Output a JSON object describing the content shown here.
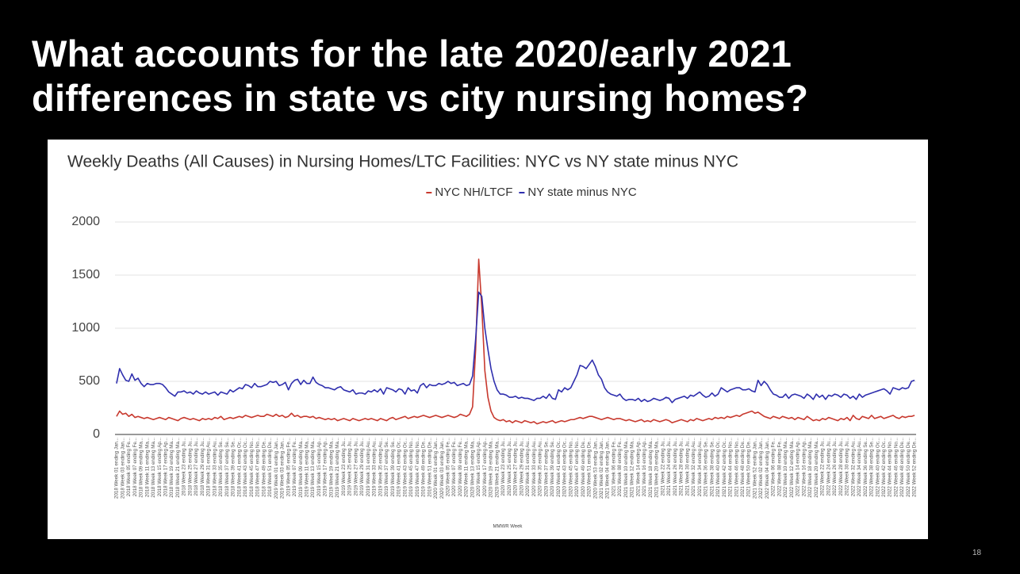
{
  "slide": {
    "title": [
      "What accounts for the late 2020/early 2021",
      "differences in state vs city nursing homes?"
    ],
    "page_number": "18"
  },
  "chart_data": {
    "type": "line",
    "title": "Weekly Deaths (All Causes) in Nursing Homes/LTC Facilities: NYC vs NY state minus NYC",
    "x_label": "MMWR Week",
    "ylim": [
      0,
      2000
    ],
    "yticks": [
      0,
      500,
      1000,
      1500,
      2000
    ],
    "grid": true,
    "legend": "top",
    "categories": [
      "2018 Week 01 ending Jan...",
      null,
      "2018 Week 03 ending Jan...",
      null,
      "2018 Week 05 ending Fe...",
      null,
      "2018 Week 07 ending Fe...",
      null,
      "2018 Week 09 ending Ma...",
      null,
      "2018 Week 11 ending Ma...",
      null,
      "2018 Week 13 ending Ma...",
      null,
      "2018 Week 15 ending Ap...",
      null,
      "2018 Week 17 ending Ap...",
      null,
      "2018 Week 19 ending Ma...",
      null,
      "2018 Week 21 ending Ma...",
      null,
      "2018 Week 23 ending Ju...",
      null,
      "2018 Week 25 ending Ju...",
      null,
      "2018 Week 27 ending Ju...",
      null,
      "2018 Week 29 ending Ju...",
      null,
      "2018 Week 31 ending Au...",
      null,
      "2018 Week 33 ending Au...",
      null,
      "2018 Week 35 ending Se...",
      null,
      "2018 Week 37 ending Se...",
      null,
      "2018 Week 39 ending Se...",
      null,
      "2018 Week 41 ending Oc...",
      null,
      "2018 Week 43 ending Oc...",
      null,
      "2018 Week 45 ending No...",
      null,
      "2018 Week 47 ending No...",
      null,
      "2018 Week 49 ending De...",
      null,
      "2018 Week 51 ending De...",
      null,
      "2019 Week 01 ending Jan...",
      null,
      "2019 Week 03 ending Jan...",
      null,
      "2019 Week 05 ending Fe...",
      null,
      "2019 Week 07 ending Fe...",
      null,
      "2019 Week 09 ending Ma...",
      null,
      "2019 Week 11 ending Ma...",
      null,
      "2019 Week 13 ending Ma...",
      null,
      "2019 Week 15 ending Ap...",
      null,
      "2019 Week 17 ending Ap...",
      null,
      "2019 Week 19 ending Ma...",
      null,
      "2019 Week 21 ending Ma...",
      null,
      "2019 Week 23 ending Ju...",
      null,
      "2019 Week 25 ending Ju...",
      null,
      "2019 Week 27 ending Ju...",
      null,
      "2019 Week 29 ending Ju...",
      null,
      "2019 Week 31 ending Au...",
      null,
      "2019 Week 33 ending Au...",
      null,
      "2019 Week 35 ending Au...",
      null,
      "2019 Week 37 ending Se...",
      null,
      "2019 Week 39 ending Se...",
      null,
      "2019 Week 41 ending Oc...",
      null,
      "2019 Week 43 ending Oc...",
      null,
      "2019 Week 45 ending No...",
      null,
      "2019 Week 47 ending No...",
      null,
      "2019 Week 49 ending De...",
      null,
      "2019 Week 51 ending De...",
      null,
      "2020 Week 01 ending Jan...",
      null,
      "2020 Week 03 ending Jan...",
      null,
      "2020 Week 05 ending Fe...",
      null,
      "2020 Week 07 ending Fe...",
      null,
      "2020 Week 09 ending Fe...",
      null,
      "2020 Week 11 ending Ma...",
      null,
      "2020 Week 13 ending Ma...",
      null,
      "2020 Week 15 ending Ap...",
      null,
      "2020 Week 17 ending Ap...",
      null,
      "2020 Week 19 ending Ma...",
      null,
      "2020 Week 21 ending Ma...",
      null,
      "2020 Week 23 ending Ju...",
      null,
      "2020 Week 25 ending Ju...",
      null,
      "2020 Week 27 ending Ju...",
      null,
      "2020 Week 29 ending Ju...",
      null,
      "2020 Week 31 ending Au...",
      null,
      "2020 Week 33 ending Au...",
      null,
      "2020 Week 35 ending Au...",
      null,
      "2020 Week 37 ending Se...",
      null,
      "2020 Week 39 ending Se...",
      null,
      "2020 Week 41 ending Oc...",
      null,
      "2020 Week 43 ending Oc...",
      null,
      "2020 Week 45 ending No...",
      null,
      "2020 Week 47 ending No...",
      null,
      "2020 Week 49 ending De...",
      null,
      "2020 Week 51 ending De...",
      null,
      "2020 Week 53 ending Jan...",
      null,
      "2021 Week 02 ending Jan...",
      null,
      "2021 Week 04 ending Jan...",
      null,
      "2021 Week 06 ending Fe...",
      null,
      "2021 Week 08 ending Fe...",
      null,
      "2021 Week 10 ending Ma...",
      null,
      "2021 Week 12 ending Ma...",
      null,
      "2021 Week 14 ending Ap...",
      null,
      "2021 Week 16 ending Ap...",
      null,
      "2021 Week 18 ending Ma...",
      null,
      "2021 Week 20 ending Ma...",
      null,
      "2021 Week 22 ending Ju...",
      null,
      "2021 Week 24 ending Ju...",
      null,
      "2021 Week 26 ending Ju...",
      null,
      "2021 Week 28 ending Ju...",
      null,
      "2021 Week 30 ending Ju...",
      null,
      "2021 Week 32 ending Au...",
      null,
      "2021 Week 34 ending Au...",
      null,
      "2021 Week 36 ending Se...",
      null,
      "2021 Week 38 ending Se...",
      null,
      "2021 Week 40 ending Oc...",
      null,
      "2021 Week 42 ending Oc...",
      null,
      "2021 Week 44 ending No...",
      null,
      "2021 Week 46 ending No...",
      null,
      "2021 Week 48 ending De...",
      null,
      "2021 Week 50 ending De...",
      null,
      "2021 Week 52 ending Jan...",
      null,
      "2022 Week 02 ending Jan...",
      null,
      "2022 Week 04 ending Jan...",
      null,
      "2022 Week 06 ending Fe...",
      null,
      "2022 Week 08 ending Fe...",
      null,
      "2022 Week 10 ending Ma...",
      null,
      "2022 Week 12 ending Ma...",
      null,
      "2022 Week 14 ending Ap...",
      null,
      "2022 Week 16 ending Ap...",
      null,
      "2022 Week 18 ending Ma...",
      null,
      "2022 Week 20 ending Ma...",
      null,
      "2022 Week 22 ending Ju...",
      null,
      "2022 Week 24 ending Ju...",
      null,
      "2022 Week 26 ending Ju...",
      null,
      "2022 Week 28 ending Ju...",
      null,
      "2022 Week 30 ending Ju...",
      null,
      "2022 Week 32 ending Au...",
      null,
      "2022 Week 34 ending Au...",
      null,
      "2022 Week 36 ending Se...",
      null,
      "2022 Week 38 ending Se...",
      null,
      "2022 Week 40 ending Oc...",
      null,
      "2022 Week 42 ending Oc...",
      null,
      "2022 Week 44 ending No...",
      null,
      "2022 Week 46 ending No...",
      null,
      "2022 Week 48 ending De...",
      null,
      "2022 Week 50 ending De...",
      null,
      "2022 Week 52 ending De..."
    ],
    "series": [
      {
        "name": "NYC NH/LTCF",
        "color": "#c8392e",
        "values": [
          170,
          220,
          190,
          200,
          170,
          190,
          160,
          170,
          160,
          150,
          160,
          150,
          140,
          150,
          160,
          150,
          140,
          160,
          150,
          140,
          130,
          150,
          160,
          150,
          140,
          150,
          140,
          130,
          150,
          140,
          150,
          140,
          160,
          150,
          170,
          140,
          150,
          160,
          150,
          160,
          170,
          160,
          180,
          170,
          160,
          170,
          180,
          170,
          170,
          190,
          180,
          170,
          190,
          170,
          180,
          160,
          170,
          200,
          170,
          180,
          160,
          170,
          170,
          160,
          170,
          150,
          160,
          150,
          140,
          150,
          140,
          150,
          130,
          140,
          150,
          140,
          130,
          150,
          140,
          130,
          140,
          150,
          140,
          150,
          140,
          130,
          150,
          140,
          130,
          150,
          160,
          140,
          150,
          160,
          170,
          150,
          160,
          170,
          160,
          170,
          180,
          170,
          160,
          170,
          180,
          170,
          160,
          170,
          180,
          170,
          160,
          170,
          190,
          180,
          170,
          190,
          260,
          800,
          1650,
          1200,
          600,
          350,
          220,
          160,
          140,
          130,
          140,
          120,
          130,
          110,
          130,
          120,
          110,
          130,
          120,
          110,
          120,
          100,
          110,
          120,
          110,
          120,
          130,
          110,
          120,
          130,
          120,
          130,
          140,
          140,
          150,
          160,
          150,
          160,
          170,
          170,
          160,
          150,
          140,
          150,
          160,
          150,
          140,
          150,
          150,
          140,
          130,
          140,
          130,
          120,
          130,
          140,
          120,
          130,
          120,
          140,
          130,
          120,
          130,
          140,
          130,
          110,
          120,
          130,
          140,
          130,
          120,
          140,
          130,
          150,
          140,
          130,
          140,
          150,
          140,
          160,
          150,
          160,
          150,
          170,
          160,
          170,
          180,
          170,
          190,
          200,
          210,
          220,
          200,
          210,
          190,
          170,
          160,
          150,
          170,
          160,
          150,
          170,
          160,
          150,
          160,
          140,
          160,
          150,
          140,
          170,
          150,
          130,
          140,
          130,
          150,
          140,
          160,
          150,
          140,
          130,
          150,
          140,
          160,
          130,
          180,
          150,
          140,
          170,
          160,
          150,
          180,
          150,
          160,
          170,
          150,
          160,
          170,
          180,
          160,
          150,
          170,
          160,
          170,
          170,
          180
        ]
      },
      {
        "name": "NY state minus NYC",
        "color": "#2f2fae",
        "values": [
          480,
          620,
          560,
          510,
          500,
          570,
          510,
          530,
          480,
          450,
          480,
          470,
          470,
          480,
          480,
          470,
          440,
          400,
          380,
          360,
          400,
          400,
          410,
          390,
          400,
          380,
          410,
          390,
          380,
          400,
          380,
          390,
          400,
          370,
          400,
          390,
          380,
          420,
          400,
          420,
          440,
          430,
          470,
          460,
          440,
          480,
          450,
          450,
          460,
          470,
          500,
          490,
          500,
          460,
          470,
          490,
          420,
          480,
          510,
          520,
          470,
          510,
          480,
          480,
          540,
          490,
          470,
          460,
          440,
          440,
          430,
          420,
          440,
          450,
          420,
          410,
          400,
          420,
          380,
          390,
          390,
          380,
          410,
          400,
          420,
          400,
          430,
          380,
          440,
          430,
          420,
          400,
          430,
          420,
          380,
          440,
          410,
          420,
          390,
          460,
          480,
          440,
          470,
          460,
          460,
          480,
          470,
          480,
          500,
          480,
          490,
          460,
          470,
          480,
          460,
          470,
          550,
          900,
          1340,
          1300,
          1000,
          800,
          620,
          500,
          420,
          380,
          380,
          370,
          350,
          350,
          360,
          340,
          350,
          340,
          340,
          330,
          320,
          340,
          340,
          360,
          340,
          380,
          340,
          330,
          420,
          400,
          440,
          420,
          440,
          500,
          560,
          650,
          640,
          620,
          660,
          700,
          640,
          560,
          520,
          440,
          400,
          380,
          370,
          360,
          380,
          340,
          320,
          330,
          330,
          320,
          340,
          310,
          330,
          310,
          320,
          340,
          330,
          320,
          330,
          350,
          340,
          300,
          330,
          340,
          350,
          360,
          340,
          370,
          360,
          380,
          400,
          370,
          350,
          360,
          390,
          360,
          380,
          440,
          420,
          400,
          420,
          430,
          440,
          440,
          420,
          420,
          430,
          410,
          400,
          510,
          460,
          500,
          470,
          420,
          380,
          370,
          350,
          350,
          380,
          340,
          370,
          380,
          370,
          360,
          340,
          380,
          360,
          330,
          380,
          350,
          370,
          330,
          370,
          360,
          380,
          370,
          350,
          380,
          370,
          340,
          360,
          330,
          380,
          350,
          370,
          380,
          390,
          400,
          410,
          420,
          430,
          410,
          380,
          440,
          430,
          420,
          440,
          430,
          440,
          500,
          510
        ]
      }
    ]
  }
}
